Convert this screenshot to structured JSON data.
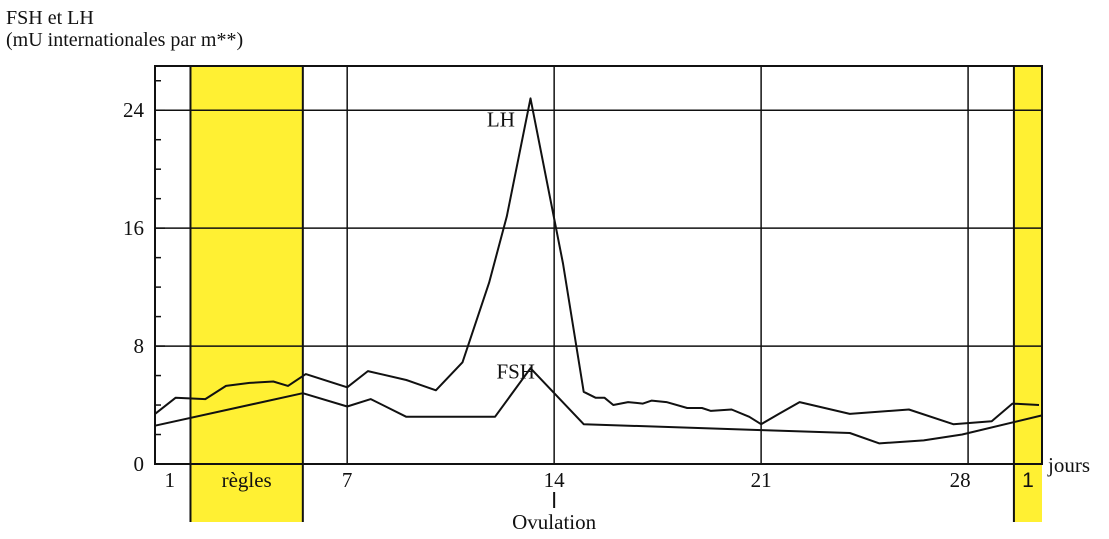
{
  "chart_data": {
    "type": "line",
    "ylabel_line1": "FSH et LH",
    "ylabel_line2": "(mU internationales par m**)",
    "xlabel": "jours",
    "x_range": [
      0.5,
      30.5
    ],
    "ylim": [
      0,
      27
    ],
    "y_ticks": [
      0,
      8,
      16,
      24
    ],
    "y_minor_step": 2,
    "x_ticks": [
      1,
      7,
      14,
      21,
      28
    ],
    "x_grid": [
      7,
      14,
      21,
      28
    ],
    "grid": true,
    "highlight_color": "#FFF033",
    "periods": [
      {
        "label": "règles",
        "start": 1.7,
        "end": 5.5
      },
      {
        "label": "1",
        "start": 29.55,
        "end": 30.5
      }
    ],
    "annotation": {
      "label": "Ovulation",
      "x": 14
    },
    "series": [
      {
        "name": "LH",
        "label_at": [
          12.2,
          22.9
        ],
        "x": [
          0.5,
          1.2,
          2.2,
          2.9,
          3.7,
          4.5,
          5.0,
          5.6,
          7.0,
          7.7,
          9.0,
          10.0,
          10.9,
          11.8,
          12.4,
          13.2,
          14.3,
          15.0,
          15.4,
          15.7,
          16.0,
          16.5,
          17.0,
          17.3,
          17.8,
          18.5,
          19.0,
          19.3,
          20.0,
          20.6,
          21.0,
          21.6,
          22.3,
          24.0,
          26.0,
          27.5,
          28.8,
          29.5,
          30.4
        ],
        "values": [
          3.4,
          4.5,
          4.4,
          5.3,
          5.5,
          5.6,
          5.3,
          6.1,
          5.2,
          6.3,
          5.7,
          5.0,
          6.9,
          12.3,
          16.8,
          24.8,
          13.6,
          4.9,
          4.5,
          4.5,
          4.0,
          4.2,
          4.1,
          4.3,
          4.2,
          3.8,
          3.8,
          3.6,
          3.7,
          3.2,
          2.7,
          3.4,
          4.2,
          3.4,
          3.7,
          2.7,
          2.9,
          4.1,
          4.0
        ]
      },
      {
        "name": "FSH",
        "label_at": [
          12.7,
          5.8
        ],
        "x": [
          0.5,
          5.5,
          7.0,
          7.8,
          9.0,
          10.0,
          11.0,
          12.0,
          13.2,
          15.0,
          21.0,
          24.0,
          25.0,
          26.5,
          27.8,
          30.5
        ],
        "values": [
          2.6,
          4.8,
          3.9,
          4.4,
          3.2,
          3.2,
          3.2,
          3.2,
          6.5,
          2.7,
          2.3,
          2.1,
          1.4,
          1.6,
          2.0,
          3.3
        ]
      }
    ]
  }
}
